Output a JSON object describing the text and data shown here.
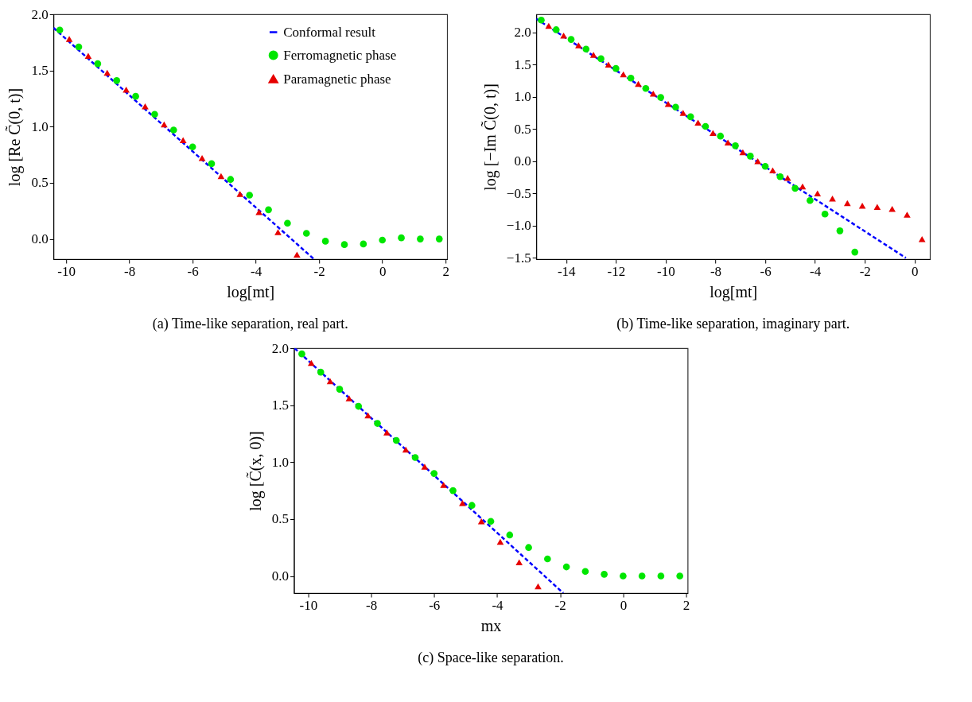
{
  "chart_data": [
    {
      "type": "scatter",
      "title": "(a) Time-like separation, real part.",
      "xlabel": "log[mt]",
      "ylabel": "log [Re C̃(0, t)]",
      "xlim": [
        -10.4,
        2.05
      ],
      "ylim": [
        -0.18,
        2.0
      ],
      "xticks": [
        -10,
        -8,
        -6,
        -4,
        -2,
        0,
        2
      ],
      "yticks": [
        {
          "value": 0,
          "label": "0.0"
        },
        {
          "value": 0.5,
          "label": "0.5"
        },
        {
          "value": 1,
          "label": "1.0"
        },
        {
          "value": 1.5,
          "label": "1.5"
        },
        {
          "value": 2,
          "label": "2.0"
        }
      ],
      "legend": "top right",
      "series": [
        {
          "name": "Conformal result",
          "type": "line",
          "line_style": "dashed",
          "color": "#0000ff",
          "x": [
            -10.4,
            -2.16
          ],
          "values": [
            1.88,
            -0.18
          ]
        },
        {
          "name": "Ferromagnetic phase",
          "marker": "circle",
          "color": "#00e600",
          "x": [
            -10.2,
            -9.6,
            -9.0,
            -8.4,
            -7.8,
            -7.2,
            -6.6,
            -6.0,
            -5.4,
            -4.8,
            -4.2,
            -3.6,
            -3.0,
            -2.4,
            -1.8,
            -1.2,
            -0.6,
            0.0,
            0.6,
            1.2,
            1.8
          ],
          "values": [
            1.86,
            1.71,
            1.56,
            1.41,
            1.27,
            1.11,
            0.97,
            0.82,
            0.67,
            0.53,
            0.39,
            0.26,
            0.14,
            0.05,
            -0.02,
            -0.05,
            -0.045,
            -0.01,
            0.01,
            0.0,
            0.0
          ]
        },
        {
          "name": "Paramagnetic phase",
          "marker": "triangle",
          "color": "#e60000",
          "x": [
            -9.9,
            -9.3,
            -8.7,
            -8.1,
            -7.5,
            -6.9,
            -6.3,
            -5.7,
            -5.1,
            -4.5,
            -3.9,
            -3.3,
            -2.7
          ],
          "values": [
            1.78,
            1.63,
            1.48,
            1.33,
            1.18,
            1.02,
            0.88,
            0.72,
            0.56,
            0.4,
            0.24,
            0.06,
            -0.14
          ]
        }
      ]
    },
    {
      "type": "scatter",
      "title": "(b) Time-like separation, imaginary part.",
      "xlabel": "log[mt]",
      "ylabel": "log [−Im C̃(0, t)]",
      "xlim": [
        -15.2,
        0.62
      ],
      "ylim": [
        -1.52,
        2.28
      ],
      "xticks": [
        -14,
        -12,
        -10,
        -8,
        -6,
        -4,
        -2,
        0
      ],
      "yticks": [
        {
          "value": -1.5,
          "label": "−1.5"
        },
        {
          "value": -1,
          "label": "−1.0"
        },
        {
          "value": -0.5,
          "label": "−0.5"
        },
        {
          "value": 0,
          "label": "0.0"
        },
        {
          "value": 0.5,
          "label": "0.5"
        },
        {
          "value": 1,
          "label": "1.0"
        },
        {
          "value": 1.5,
          "label": "1.5"
        },
        {
          "value": 2,
          "label": "2.0"
        }
      ],
      "series": [
        {
          "type": "line",
          "line_style": "dashed",
          "color": "#0000ff",
          "x": [
            -15.2,
            -0.35
          ],
          "values": [
            2.21,
            -1.5
          ]
        },
        {
          "marker": "circle",
          "color": "#00e600",
          "x": [
            -15.0,
            -14.4,
            -13.8,
            -13.2,
            -12.6,
            -12.0,
            -11.4,
            -10.8,
            -10.2,
            -9.6,
            -9.0,
            -8.4,
            -7.8,
            -7.2,
            -6.6,
            -6.0,
            -5.4,
            -4.8,
            -4.2,
            -3.6,
            -3.0,
            -2.4
          ],
          "values": [
            2.19,
            2.04,
            1.89,
            1.74,
            1.59,
            1.44,
            1.29,
            1.13,
            0.99,
            0.84,
            0.69,
            0.54,
            0.39,
            0.24,
            0.08,
            -0.08,
            -0.24,
            -0.42,
            -0.61,
            -0.82,
            -1.08,
            -1.41
          ]
        },
        {
          "marker": "triangle",
          "color": "#e60000",
          "x": [
            -14.7,
            -14.1,
            -13.5,
            -12.9,
            -12.3,
            -11.7,
            -11.1,
            -10.5,
            -9.9,
            -9.3,
            -8.7,
            -8.1,
            -7.5,
            -6.9,
            -6.3,
            -5.7,
            -5.1,
            -4.5,
            -3.9,
            -3.3,
            -2.7,
            -2.1,
            -1.5,
            -0.9,
            -0.3,
            0.3
          ],
          "values": [
            2.1,
            1.95,
            1.8,
            1.65,
            1.5,
            1.35,
            1.2,
            1.05,
            0.89,
            0.75,
            0.6,
            0.44,
            0.29,
            0.14,
            0.0,
            -0.14,
            -0.26,
            -0.39,
            -0.5,
            -0.58,
            -0.65,
            -0.69,
            -0.71,
            -0.74,
            -0.83,
            -1.21
          ]
        }
      ]
    },
    {
      "type": "scatter",
      "title": "(c) Space-like separation.",
      "xlabel": "mx",
      "ylabel": "log [C̃(x, 0)]",
      "xlim": [
        -10.45,
        2.05
      ],
      "ylim": [
        -0.15,
        2.0
      ],
      "xticks": [
        -10,
        -8,
        -6,
        -4,
        -2,
        0,
        2
      ],
      "yticks": [
        {
          "value": 0,
          "label": "0.0"
        },
        {
          "value": 0.5,
          "label": "0.5"
        },
        {
          "value": 1,
          "label": "1.0"
        },
        {
          "value": 1.5,
          "label": "1.5"
        },
        {
          "value": 2,
          "label": "2.0"
        }
      ],
      "series": [
        {
          "type": "line",
          "line_style": "dashed",
          "color": "#0000ff",
          "x": [
            -10.43,
            -1.9
          ],
          "values": [
            2.0,
            -0.15
          ]
        },
        {
          "marker": "circle",
          "color": "#00e600",
          "x": [
            -10.2,
            -9.6,
            -9.0,
            -8.4,
            -7.8,
            -7.2,
            -6.6,
            -6.0,
            -5.4,
            -4.8,
            -4.2,
            -3.6,
            -3.0,
            -2.4,
            -1.8,
            -1.2,
            -0.6,
            0.0,
            0.6,
            1.2,
            1.8
          ],
          "values": [
            1.95,
            1.79,
            1.64,
            1.49,
            1.34,
            1.19,
            1.04,
            0.9,
            0.75,
            0.62,
            0.48,
            0.36,
            0.25,
            0.15,
            0.08,
            0.04,
            0.015,
            0.0,
            0.0,
            0.0,
            0.0
          ]
        },
        {
          "marker": "triangle",
          "color": "#e60000",
          "x": [
            -9.9,
            -9.3,
            -8.7,
            -8.1,
            -7.5,
            -6.9,
            -6.3,
            -5.7,
            -5.1,
            -4.5,
            -3.9,
            -3.3,
            -2.7
          ],
          "values": [
            1.87,
            1.71,
            1.56,
            1.41,
            1.26,
            1.11,
            0.96,
            0.8,
            0.64,
            0.48,
            0.3,
            0.12,
            -0.09
          ]
        }
      ]
    }
  ]
}
